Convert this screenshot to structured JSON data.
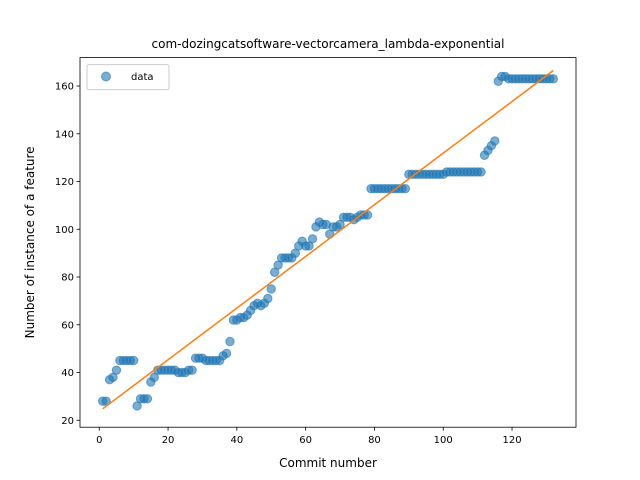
{
  "chart_data": {
    "type": "scatter",
    "title": "com-dozingcatsoftware-vectorcamera_lambda-exponential",
    "xlabel": "Commit number",
    "ylabel": "Number of instance of a feature",
    "xlim": [
      -5.6,
      138.6
    ],
    "ylim": [
      17.1,
      171.9
    ],
    "xticks": [
      0,
      20,
      40,
      60,
      80,
      100,
      120
    ],
    "yticks": [
      20,
      40,
      60,
      80,
      100,
      120,
      140,
      160
    ],
    "grid": false,
    "legend": {
      "placement": "upper-left",
      "entries": [
        {
          "label": "data",
          "marker": "circle",
          "color": "#1f77b4"
        }
      ]
    },
    "series": [
      {
        "name": "data",
        "kind": "scatter",
        "color": "#1f77b4",
        "x": [
          1,
          2,
          3,
          4,
          5,
          6,
          7,
          8,
          9,
          10,
          11,
          12,
          13,
          14,
          15,
          16,
          17,
          18,
          19,
          20,
          21,
          22,
          23,
          24,
          25,
          26,
          27,
          28,
          29,
          30,
          31,
          32,
          33,
          34,
          35,
          36,
          37,
          38,
          39,
          40,
          41,
          42,
          43,
          44,
          45,
          46,
          47,
          48,
          49,
          50,
          51,
          52,
          53,
          54,
          55,
          56,
          57,
          58,
          59,
          60,
          61,
          62,
          63,
          64,
          65,
          66,
          67,
          68,
          69,
          70,
          71,
          72,
          73,
          74,
          75,
          76,
          77,
          78,
          79,
          80,
          81,
          82,
          83,
          84,
          85,
          86,
          87,
          88,
          89,
          90,
          91,
          92,
          93,
          94,
          95,
          96,
          97,
          98,
          99,
          100,
          101,
          102,
          103,
          104,
          105,
          106,
          107,
          108,
          109,
          110,
          111,
          112,
          113,
          114,
          115,
          116,
          117,
          118,
          119,
          120,
          121,
          122,
          123,
          124,
          125,
          126,
          127,
          128,
          129,
          130,
          131,
          132
        ],
        "y": [
          28,
          28,
          37,
          38,
          41,
          45,
          45,
          45,
          45,
          45,
          26,
          29,
          29,
          29,
          36,
          38,
          41,
          41,
          41,
          41,
          41,
          41,
          40,
          40,
          40,
          41,
          41,
          46,
          46,
          46,
          45,
          45,
          45,
          45,
          45,
          47,
          48,
          53,
          62,
          62,
          63,
          63,
          64,
          66,
          68,
          69,
          68,
          69,
          71,
          75,
          82,
          85,
          88,
          88,
          88,
          88,
          90,
          93,
          95,
          93,
          93,
          96,
          101,
          103,
          102,
          102,
          98,
          101,
          101,
          102,
          105,
          105,
          105,
          104,
          105,
          106,
          106,
          106,
          117,
          117,
          117,
          117,
          117,
          117,
          117,
          117,
          117,
          117,
          117,
          123,
          123,
          123,
          123,
          123,
          123,
          123,
          123,
          123,
          123,
          123,
          124,
          124,
          124,
          124,
          124,
          124,
          124,
          124,
          124,
          124,
          124,
          131,
          133,
          135,
          137,
          162,
          164,
          164,
          163,
          163,
          163,
          163,
          163,
          163,
          163,
          163,
          163,
          163,
          163,
          163,
          163,
          163
        ]
      },
      {
        "name": "",
        "kind": "line",
        "color": "#ff7f0e",
        "x": [
          1,
          132
        ],
        "y": [
          24.8,
          166.5
        ]
      }
    ]
  }
}
